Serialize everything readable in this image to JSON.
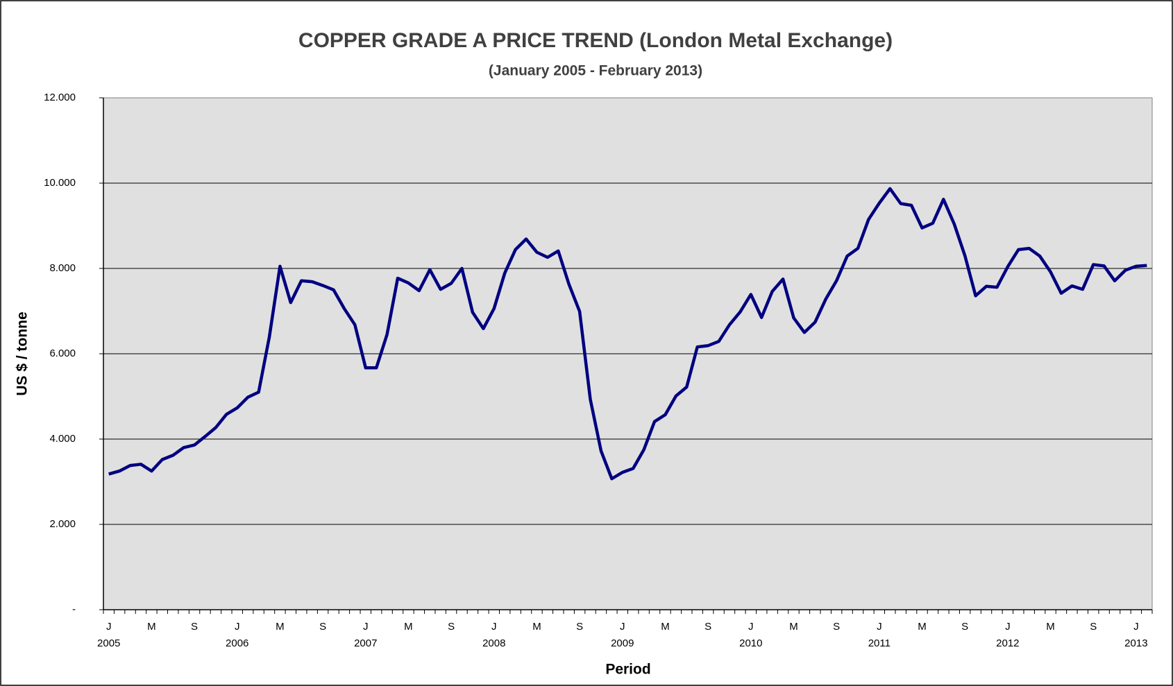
{
  "chart_data": {
    "type": "line",
    "title": "COPPER GRADE A PRICE TREND (London Metal Exchange)",
    "subtitle": "(January 2005 - February 2013)",
    "y_label": "US $ / tonne",
    "x_label": "Period",
    "categories": [
      "J",
      null,
      null,
      null,
      "M",
      null,
      null,
      null,
      "S",
      null,
      null,
      null,
      "J",
      null,
      null,
      null,
      "M",
      null,
      null,
      null,
      "S",
      null,
      null,
      null,
      "J",
      null,
      null,
      null,
      "M",
      null,
      null,
      null,
      "S",
      null,
      null,
      null,
      "J",
      null,
      null,
      null,
      "M",
      null,
      null,
      null,
      "S",
      null,
      null,
      null,
      "J",
      null,
      null,
      null,
      "M",
      null,
      null,
      null,
      "S",
      null,
      null,
      null,
      "J",
      null,
      null,
      null,
      "M",
      null,
      null,
      null,
      "S",
      null,
      null,
      null,
      "J",
      null,
      null,
      null,
      "M",
      null,
      null,
      null,
      "S",
      null,
      null,
      null,
      "J",
      null,
      null,
      null,
      "M",
      null,
      null,
      null,
      "S",
      null,
      null,
      null,
      "J",
      null
    ],
    "years": [
      "2005",
      null,
      null,
      null,
      null,
      null,
      null,
      null,
      null,
      null,
      null,
      null,
      "2006",
      null,
      null,
      null,
      null,
      null,
      null,
      null,
      null,
      null,
      null,
      null,
      "2007",
      null,
      null,
      null,
      null,
      null,
      null,
      null,
      null,
      null,
      null,
      null,
      "2008",
      null,
      null,
      null,
      null,
      null,
      null,
      null,
      null,
      null,
      null,
      null,
      "2009",
      null,
      null,
      null,
      null,
      null,
      null,
      null,
      null,
      null,
      null,
      null,
      "2010",
      null,
      null,
      null,
      null,
      null,
      null,
      null,
      null,
      null,
      null,
      null,
      "2011",
      null,
      null,
      null,
      null,
      null,
      null,
      null,
      null,
      null,
      null,
      null,
      "2012",
      null,
      null,
      null,
      null,
      null,
      null,
      null,
      null,
      null,
      null,
      null,
      "2013",
      null
    ],
    "series": [
      {
        "name": "Copper Grade A",
        "color": "#000080",
        "values": [
          3180,
          3250,
          3380,
          3410,
          3250,
          3520,
          3620,
          3800,
          3860,
          4060,
          4270,
          4580,
          4730,
          4980,
          5100,
          6390,
          8050,
          7200,
          7710,
          7690,
          7600,
          7500,
          7060,
          6680,
          5670,
          5670,
          6450,
          7770,
          7660,
          7480,
          7970,
          7510,
          7650,
          8000,
          6970,
          6590,
          7060,
          7890,
          8440,
          8690,
          8380,
          8260,
          8410,
          7630,
          6990,
          4930,
          3720,
          3070,
          3220,
          3310,
          3750,
          4410,
          4570,
          5010,
          5220,
          6160,
          6190,
          6290,
          6680,
          6980,
          7390,
          6850,
          7460,
          7750,
          6840,
          6500,
          6740,
          7280,
          7710,
          8290,
          8470,
          9150,
          9530,
          9870,
          9520,
          9480,
          8950,
          9060,
          9620,
          9040,
          8300,
          7360,
          7580,
          7560,
          8040,
          8440,
          8470,
          8290,
          7920,
          7420,
          7590,
          7510,
          8090,
          8060,
          7710,
          7960,
          8050,
          8070
        ]
      }
    ],
    "ylim": [
      0,
      12000
    ],
    "yticks": [
      {
        "value": 0,
        "label": "-"
      },
      {
        "value": 2000,
        "label": "2.000"
      },
      {
        "value": 4000,
        "label": "4.000"
      },
      {
        "value": 6000,
        "label": "6.000"
      },
      {
        "value": 8000,
        "label": "8.000"
      },
      {
        "value": 10000,
        "label": "10.000"
      },
      {
        "value": 12000,
        "label": "12.000"
      }
    ],
    "grid": true
  }
}
